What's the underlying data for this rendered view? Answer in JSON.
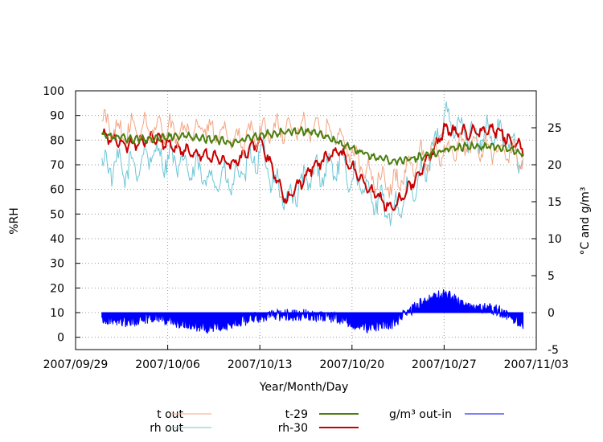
{
  "chart_data": {
    "type": "line",
    "xlabel": "Year/Month/Day",
    "ylabel": "%RH",
    "y2label": "°C and g/m³",
    "ylim": [
      -5,
      100
    ],
    "y2lim": [
      -5,
      30
    ],
    "x_range_days": [
      "2007/09/29",
      "2007/11/03"
    ],
    "x_ticks": [
      "2007/09/29",
      "2007/10/06",
      "2007/10/13",
      "2007/10/20",
      "2007/10/27",
      "2007/11/03"
    ],
    "y_ticks": [
      "0",
      "10",
      "20",
      "30",
      "40",
      "50",
      "60",
      "70",
      "80",
      "90",
      "100"
    ],
    "y2_ticks": [
      "-5",
      "0",
      "5",
      "10",
      "15",
      "20",
      "25"
    ],
    "grid": true,
    "legend_position": "bottom",
    "series": [
      {
        "name": "t out",
        "axis": "y2",
        "color": "#f4a582",
        "x": [
          "2007/10/01",
          "2007/10/03",
          "2007/10/05",
          "2007/10/07",
          "2007/10/09",
          "2007/10/11",
          "2007/10/13",
          "2007/10/15",
          "2007/10/17",
          "2007/10/19",
          "2007/10/21",
          "2007/10/23",
          "2007/10/25",
          "2007/10/27",
          "2007/10/29",
          "2007/10/31",
          "2007/11/02"
        ],
        "values": [
          25.5,
          24.5,
          25,
          24.5,
          25,
          23,
          24.5,
          25,
          25,
          24,
          19,
          17,
          21,
          22,
          22.5,
          22,
          21
        ]
      },
      {
        "name": "rh out",
        "axis": "y1",
        "color": "#6ec6d6",
        "x": [
          "2007/10/01",
          "2007/10/03",
          "2007/10/05",
          "2007/10/07",
          "2007/10/09",
          "2007/10/11",
          "2007/10/13",
          "2007/10/15",
          "2007/10/17",
          "2007/10/19",
          "2007/10/21",
          "2007/10/23",
          "2007/10/25",
          "2007/10/27",
          "2007/10/29",
          "2007/10/31",
          "2007/11/02"
        ],
        "values": [
          70,
          68,
          75,
          70,
          65,
          63,
          75,
          55,
          66,
          70,
          60,
          50,
          62,
          88,
          82,
          83,
          73
        ]
      },
      {
        "name": "t-29",
        "axis": "y2",
        "color": "#4b7f0f",
        "x": [
          "2007/10/01",
          "2007/10/03",
          "2007/10/05",
          "2007/10/07",
          "2007/10/09",
          "2007/10/11",
          "2007/10/13",
          "2007/10/15",
          "2007/10/17",
          "2007/10/19",
          "2007/10/21",
          "2007/10/23",
          "2007/10/25",
          "2007/10/27",
          "2007/10/29",
          "2007/10/31",
          "2007/11/02"
        ],
        "values": [
          24,
          23.5,
          23.5,
          24,
          23.5,
          23,
          24,
          24.5,
          24.5,
          23,
          21.5,
          20.5,
          21,
          22,
          22.5,
          22.5,
          21.5
        ]
      },
      {
        "name": "rh-30",
        "axis": "y1",
        "color": "#c80000",
        "x": [
          "2007/10/01",
          "2007/10/03",
          "2007/10/05",
          "2007/10/07",
          "2007/10/09",
          "2007/10/11",
          "2007/10/13",
          "2007/10/15",
          "2007/10/17",
          "2007/10/19",
          "2007/10/21",
          "2007/10/23",
          "2007/10/25",
          "2007/10/27",
          "2007/10/29",
          "2007/10/31",
          "2007/11/02"
        ],
        "values": [
          82,
          78,
          81,
          76,
          74,
          70,
          80,
          55,
          69,
          76,
          62,
          52,
          65,
          84,
          83,
          84,
          76
        ]
      },
      {
        "name": "g/m³ out-in",
        "axis": "y2",
        "color": "#0000ff",
        "x": [
          "2007/10/01",
          "2007/10/03",
          "2007/10/05",
          "2007/10/07",
          "2007/10/09",
          "2007/10/11",
          "2007/10/13",
          "2007/10/15",
          "2007/10/17",
          "2007/10/19",
          "2007/10/21",
          "2007/10/23",
          "2007/10/25",
          "2007/10/27",
          "2007/10/29",
          "2007/10/31",
          "2007/11/02"
        ],
        "values": [
          -0.8,
          -1.2,
          -0.5,
          -1.5,
          -2,
          -1.5,
          -0.5,
          -0.3,
          -0.3,
          -0.8,
          -2,
          -1.5,
          1,
          2.5,
          0.8,
          0.3,
          -1.5
        ]
      }
    ]
  }
}
